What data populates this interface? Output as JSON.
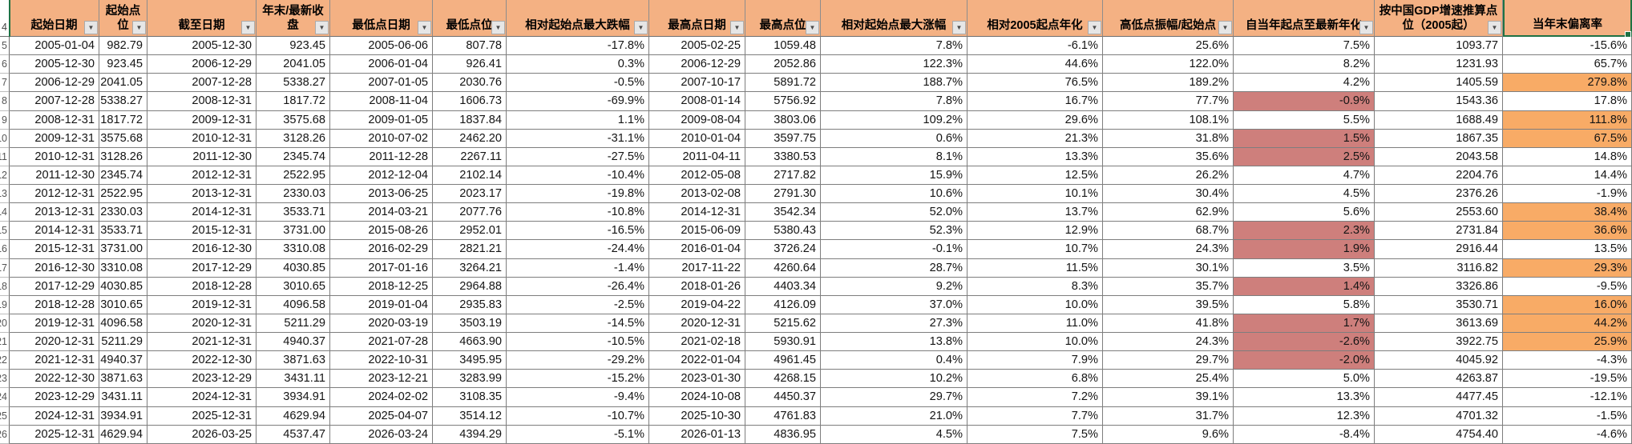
{
  "app": {
    "type": "spreadsheet-grid"
  },
  "icons": {
    "filter_dropdown": "▼"
  },
  "colors": {
    "header_bg": "#F4B183",
    "highlight_orange": "#F8AB66",
    "highlight_red": "#CE7F7C",
    "selection_green": "#1F7244",
    "grid_line": "#7E7E7E"
  },
  "table": {
    "header_row_number": "4",
    "columns": [
      {
        "key": "start_date",
        "label": "起始日期",
        "filter": true
      },
      {
        "key": "start_val",
        "label": "起始点位",
        "filter": true
      },
      {
        "key": "end_date",
        "label": "截至日期",
        "filter": true
      },
      {
        "key": "close",
        "label": "年末/最新收盘",
        "filter": true
      },
      {
        "key": "low_date",
        "label": "最低点日期",
        "filter": true
      },
      {
        "key": "low_val",
        "label": "最低点位",
        "filter": true
      },
      {
        "key": "max_drawdown",
        "label": "相对起始点最大跌幅",
        "filter": true
      },
      {
        "key": "high_date",
        "label": "最高点日期",
        "filter": true
      },
      {
        "key": "high_val",
        "label": "最高点位",
        "filter": true
      },
      {
        "key": "max_gain",
        "label": "相对起始点最大涨幅",
        "filter": true
      },
      {
        "key": "ann_2005",
        "label": "相对2005起点年化",
        "filter": true
      },
      {
        "key": "amplitude",
        "label": "高低点振幅/起始点",
        "filter": true
      },
      {
        "key": "since_start",
        "label": "自当年起点至最新年化",
        "filter": true
      },
      {
        "key": "gdp_est",
        "label": "按中国GDP增速推算点位（2005起）",
        "filter": true
      },
      {
        "key": "deviation",
        "label": "当年末偏离率",
        "filter": false,
        "selected": true
      }
    ],
    "rows": [
      {
        "n": "5",
        "cells": [
          "2005-01-04",
          "982.79",
          "2005-12-30",
          "923.45",
          "2005-06-06",
          "807.78",
          "-17.8%",
          "2005-02-25",
          "1059.48",
          "7.8%",
          "-6.1%",
          "25.6%",
          "7.5%",
          "1093.77",
          "-15.6%"
        ]
      },
      {
        "n": "6",
        "cells": [
          "2005-12-30",
          "923.45",
          "2006-12-29",
          "2041.05",
          "2006-01-04",
          "926.41",
          "0.3%",
          "2006-12-29",
          "2052.86",
          "122.3%",
          "44.6%",
          "122.0%",
          "8.2%",
          "1231.93",
          "65.7%"
        ]
      },
      {
        "n": "7",
        "cells": [
          "2006-12-29",
          "2041.05",
          "2007-12-28",
          "5338.27",
          "2007-01-05",
          "2030.76",
          "-0.5%",
          "2007-10-17",
          "5891.72",
          "188.7%",
          "76.5%",
          "189.2%",
          "4.2%",
          "1405.59",
          "279.8%"
        ],
        "dev_orange": true
      },
      {
        "n": "8",
        "cells": [
          "2007-12-28",
          "5338.27",
          "2008-12-31",
          "1817.72",
          "2008-11-04",
          "1606.73",
          "-69.9%",
          "2008-01-14",
          "5756.92",
          "7.8%",
          "16.7%",
          "77.7%",
          "-0.9%",
          "1543.36",
          "17.8%"
        ],
        "since_red": true
      },
      {
        "n": "9",
        "cells": [
          "2008-12-31",
          "1817.72",
          "2009-12-31",
          "3575.68",
          "2009-01-05",
          "1837.84",
          "1.1%",
          "2009-08-04",
          "3803.06",
          "109.2%",
          "29.6%",
          "108.1%",
          "5.5%",
          "1688.49",
          "111.8%"
        ],
        "dev_orange": true
      },
      {
        "n": "10",
        "cells": [
          "2009-12-31",
          "3575.68",
          "2010-12-31",
          "3128.26",
          "2010-07-02",
          "2462.20",
          "-31.1%",
          "2010-01-04",
          "3597.75",
          "0.6%",
          "21.3%",
          "31.8%",
          "1.5%",
          "1867.35",
          "67.5%"
        ],
        "since_red": true,
        "dev_orange": true
      },
      {
        "n": "11",
        "cells": [
          "2010-12-31",
          "3128.26",
          "2011-12-30",
          "2345.74",
          "2011-12-28",
          "2267.11",
          "-27.5%",
          "2011-04-11",
          "3380.53",
          "8.1%",
          "13.3%",
          "35.6%",
          "2.5%",
          "2043.58",
          "14.8%"
        ],
        "since_red": true
      },
      {
        "n": "12",
        "cells": [
          "2011-12-30",
          "2345.74",
          "2012-12-31",
          "2522.95",
          "2012-12-04",
          "2102.14",
          "-10.4%",
          "2012-05-08",
          "2717.82",
          "15.9%",
          "12.5%",
          "26.2%",
          "4.7%",
          "2204.76",
          "14.4%"
        ]
      },
      {
        "n": "13",
        "cells": [
          "2012-12-31",
          "2522.95",
          "2013-12-31",
          "2330.03",
          "2013-06-25",
          "2023.17",
          "-19.8%",
          "2013-02-08",
          "2791.30",
          "10.6%",
          "10.1%",
          "30.4%",
          "4.5%",
          "2376.26",
          "-1.9%"
        ]
      },
      {
        "n": "14",
        "cells": [
          "2013-12-31",
          "2330.03",
          "2014-12-31",
          "3533.71",
          "2014-03-21",
          "2077.76",
          "-10.8%",
          "2014-12-31",
          "3542.34",
          "52.0%",
          "13.7%",
          "62.9%",
          "5.6%",
          "2553.60",
          "38.4%"
        ],
        "dev_orange": true
      },
      {
        "n": "15",
        "cells": [
          "2014-12-31",
          "3533.71",
          "2015-12-31",
          "3731.00",
          "2015-08-26",
          "2952.01",
          "-16.5%",
          "2015-06-09",
          "5380.43",
          "52.3%",
          "12.9%",
          "68.7%",
          "2.3%",
          "2731.84",
          "36.6%"
        ],
        "since_red": true,
        "dev_orange": true
      },
      {
        "n": "16",
        "cells": [
          "2015-12-31",
          "3731.00",
          "2016-12-30",
          "3310.08",
          "2016-02-29",
          "2821.21",
          "-24.4%",
          "2016-01-04",
          "3726.24",
          "-0.1%",
          "10.7%",
          "24.3%",
          "1.9%",
          "2916.44",
          "13.5%"
        ],
        "since_red": true
      },
      {
        "n": "17",
        "cells": [
          "2016-12-30",
          "3310.08",
          "2017-12-29",
          "4030.85",
          "2017-01-16",
          "3264.21",
          "-1.4%",
          "2017-11-22",
          "4260.64",
          "28.7%",
          "11.5%",
          "30.1%",
          "3.5%",
          "3116.82",
          "29.3%"
        ],
        "dev_orange": true
      },
      {
        "n": "18",
        "cells": [
          "2017-12-29",
          "4030.85",
          "2018-12-28",
          "3010.65",
          "2018-12-25",
          "2964.88",
          "-26.4%",
          "2018-01-26",
          "4403.34",
          "9.2%",
          "8.3%",
          "35.7%",
          "1.4%",
          "3326.86",
          "-9.5%"
        ],
        "since_red": true
      },
      {
        "n": "19",
        "cells": [
          "2018-12-28",
          "3010.65",
          "2019-12-31",
          "4096.58",
          "2019-01-04",
          "2935.83",
          "-2.5%",
          "2019-04-22",
          "4126.09",
          "37.0%",
          "10.0%",
          "39.5%",
          "5.8%",
          "3530.71",
          "16.0%"
        ],
        "dev_orange": true
      },
      {
        "n": "20",
        "cells": [
          "2019-12-31",
          "4096.58",
          "2020-12-31",
          "5211.29",
          "2020-03-19",
          "3503.19",
          "-14.5%",
          "2020-12-31",
          "5215.62",
          "27.3%",
          "11.0%",
          "41.8%",
          "1.7%",
          "3613.69",
          "44.2%"
        ],
        "since_red": true,
        "dev_orange": true
      },
      {
        "n": "21",
        "cells": [
          "2020-12-31",
          "5211.29",
          "2021-12-31",
          "4940.37",
          "2021-07-28",
          "4663.90",
          "-10.5%",
          "2021-02-18",
          "5930.91",
          "13.8%",
          "10.0%",
          "24.3%",
          "-2.6%",
          "3922.75",
          "25.9%"
        ],
        "since_red": true,
        "dev_orange": true
      },
      {
        "n": "22",
        "cells": [
          "2021-12-31",
          "4940.37",
          "2022-12-30",
          "3871.63",
          "2022-10-31",
          "3495.95",
          "-29.2%",
          "2022-01-04",
          "4961.45",
          "0.4%",
          "7.9%",
          "29.7%",
          "-2.0%",
          "4045.92",
          "-4.3%"
        ],
        "since_red": true
      },
      {
        "n": "23",
        "cells": [
          "2022-12-30",
          "3871.63",
          "2023-12-29",
          "3431.11",
          "2023-12-21",
          "3283.99",
          "-15.2%",
          "2023-01-30",
          "4268.15",
          "10.2%",
          "6.8%",
          "25.4%",
          "5.0%",
          "4263.87",
          "-19.5%"
        ]
      },
      {
        "n": "24",
        "cells": [
          "2023-12-29",
          "3431.11",
          "2024-12-31",
          "3934.91",
          "2024-02-02",
          "3108.35",
          "-9.4%",
          "2024-10-08",
          "4450.37",
          "29.7%",
          "7.2%",
          "39.1%",
          "13.3%",
          "4477.45",
          "-12.1%"
        ]
      },
      {
        "n": "25",
        "cells": [
          "2024-12-31",
          "3934.91",
          "2025-12-31",
          "4629.94",
          "2025-04-07",
          "3514.12",
          "-10.7%",
          "2025-10-30",
          "4761.83",
          "21.0%",
          "7.7%",
          "31.7%",
          "12.3%",
          "4701.32",
          "-1.5%"
        ]
      },
      {
        "n": "26",
        "cells": [
          "2025-12-31",
          "4629.94",
          "2026-03-25",
          "4537.47",
          "2026-03-24",
          "4394.29",
          "-5.1%",
          "2026-01-13",
          "4836.95",
          "4.5%",
          "7.5%",
          "9.6%",
          "-8.4%",
          "4754.40",
          "-4.6%"
        ]
      }
    ]
  }
}
